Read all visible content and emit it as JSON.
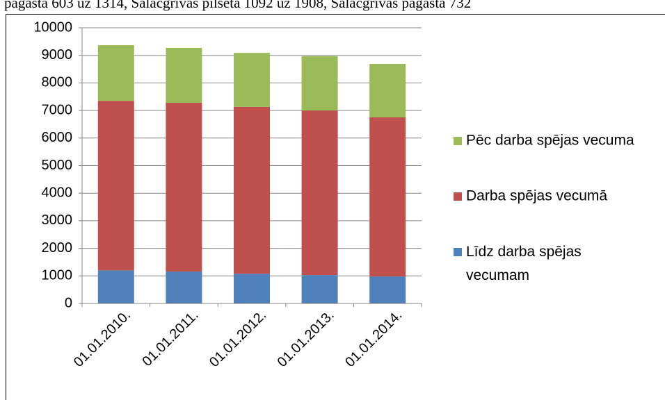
{
  "caption": "pagasta 603 uz 1314, Salacgrīvas pilsēta 1092 uz 1908, Salacgrīvas pagasta 732",
  "chart_data": {
    "type": "stacked_bar",
    "categories": [
      "01.01.2010.",
      "01.01.2011.",
      "01.01.2012.",
      "01.01.2013.",
      "01.01.2014."
    ],
    "series": [
      {
        "name": "Līdz darba spējas vecumam",
        "color": "#4f81bd",
        "values": [
          1200,
          1160,
          1080,
          1030,
          980
        ]
      },
      {
        "name": "Darba spējas vecumā",
        "color": "#c0504d",
        "values": [
          6150,
          6120,
          6050,
          5970,
          5770
        ]
      },
      {
        "name": "Pēc darba spējas vecuma",
        "color": "#9bbb59",
        "values": [
          2020,
          1990,
          1960,
          1970,
          1940
        ]
      }
    ],
    "ylim": [
      0,
      10000
    ],
    "yticks": [
      0,
      1000,
      2000,
      3000,
      4000,
      5000,
      6000,
      7000,
      8000,
      9000,
      10000
    ],
    "grid": true,
    "legend": "right"
  }
}
